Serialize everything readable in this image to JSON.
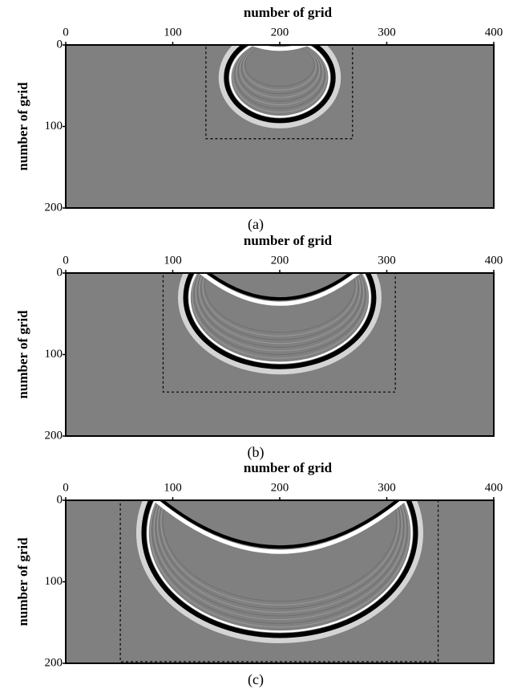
{
  "chart_data": [
    {
      "type": "image",
      "xlabel": "number of grid",
      "ylabel": "number of grid",
      "caption": "(a)",
      "xlim": [
        0,
        400
      ],
      "ylim": [
        200,
        0
      ],
      "xticks": [
        0,
        100,
        200,
        300,
        400
      ],
      "yticks": [
        0,
        100,
        200
      ]
    },
    {
      "type": "image",
      "xlabel": "number of grid",
      "ylabel": "number of grid",
      "caption": "(b)",
      "xlim": [
        0,
        400
      ],
      "ylim": [
        200,
        0
      ],
      "xticks": [
        0,
        100,
        200,
        300,
        400
      ],
      "yticks": [
        0,
        100,
        200
      ]
    },
    {
      "type": "image",
      "xlabel": "number of grid",
      "ylabel": "number of grid",
      "caption": "(c)",
      "xlim": [
        0,
        400
      ],
      "ylim": [
        200,
        0
      ],
      "xticks": [
        0,
        100,
        200,
        300,
        400
      ],
      "yticks": [
        0,
        100,
        200
      ]
    }
  ]
}
